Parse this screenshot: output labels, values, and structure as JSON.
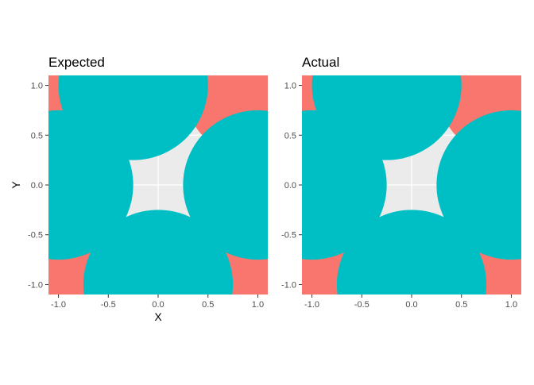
{
  "chart_data": [
    {
      "type": "scatter",
      "title": "Expected",
      "xlabel": "X",
      "ylabel": "Y",
      "xlim": [
        -1.1,
        1.1
      ],
      "ylim": [
        -1.1,
        1.1
      ],
      "x_ticks": [
        -1.0,
        -0.5,
        0.0,
        0.5,
        1.0
      ],
      "y_ticks": [
        -1.0,
        -0.5,
        0.0,
        0.5,
        1.0
      ],
      "x_tick_labels": [
        "-1.0",
        "-0.5",
        "0.0",
        "0.5",
        "1.0"
      ],
      "y_tick_labels": [
        "-1.0",
        "-0.5",
        "0.0",
        "0.5",
        "1.0"
      ],
      "background": "#ebebeb",
      "grid": true,
      "legend": "none",
      "series": [
        {
          "color": "#f8766d",
          "circles": [
            {
              "cx": -0.75,
              "cy": 1.0,
              "r": 0.75
            },
            {
              "cx": 1.0,
              "cy": 1.0,
              "r": 0.75
            },
            {
              "cx": -1.0,
              "cy": -1.0,
              "r": 0.75
            },
            {
              "cx": 0.75,
              "cy": -1.0,
              "r": 0.75
            }
          ]
        },
        {
          "color": "#00bfc4",
          "circles": [
            {
              "cx": -0.25,
              "cy": 1.0,
              "r": 0.75
            },
            {
              "cx": 1.0,
              "cy": 0.0,
              "r": 0.75
            },
            {
              "cx": -1.0,
              "cy": 0.0,
              "r": 0.75
            },
            {
              "cx": 0.0,
              "cy": -1.0,
              "r": 0.75
            }
          ]
        }
      ]
    },
    {
      "type": "scatter",
      "title": "Actual",
      "xlabel": "",
      "ylabel": "",
      "xlim": [
        -1.1,
        1.1
      ],
      "ylim": [
        -1.1,
        1.1
      ],
      "x_ticks": [
        -1.0,
        -0.5,
        0.0,
        0.5,
        1.0
      ],
      "y_ticks": [
        -1.0,
        -0.5,
        0.0,
        0.5,
        1.0
      ],
      "x_tick_labels": [
        "-1.0",
        "-0.5",
        "0.0",
        "0.5",
        "1.0"
      ],
      "y_tick_labels": [
        "-1.0",
        "-0.5",
        "0.0",
        "0.5",
        "1.0"
      ],
      "background": "#ebebeb",
      "grid": true,
      "legend": "none",
      "series": [
        {
          "color": "#f8766d",
          "circles": [
            {
              "cx": -0.75,
              "cy": 1.0,
              "r": 0.75
            },
            {
              "cx": 1.0,
              "cy": 1.0,
              "r": 0.75
            },
            {
              "cx": -1.0,
              "cy": -1.0,
              "r": 0.75
            },
            {
              "cx": 0.75,
              "cy": -1.0,
              "r": 0.75
            }
          ]
        },
        {
          "color": "#00bfc4",
          "circles": [
            {
              "cx": -0.25,
              "cy": 1.0,
              "r": 0.75
            },
            {
              "cx": 1.0,
              "cy": 0.0,
              "r": 0.75
            },
            {
              "cx": -1.0,
              "cy": 0.0,
              "r": 0.75
            },
            {
              "cx": 0.0,
              "cy": -1.0,
              "r": 0.75
            }
          ]
        }
      ]
    }
  ]
}
